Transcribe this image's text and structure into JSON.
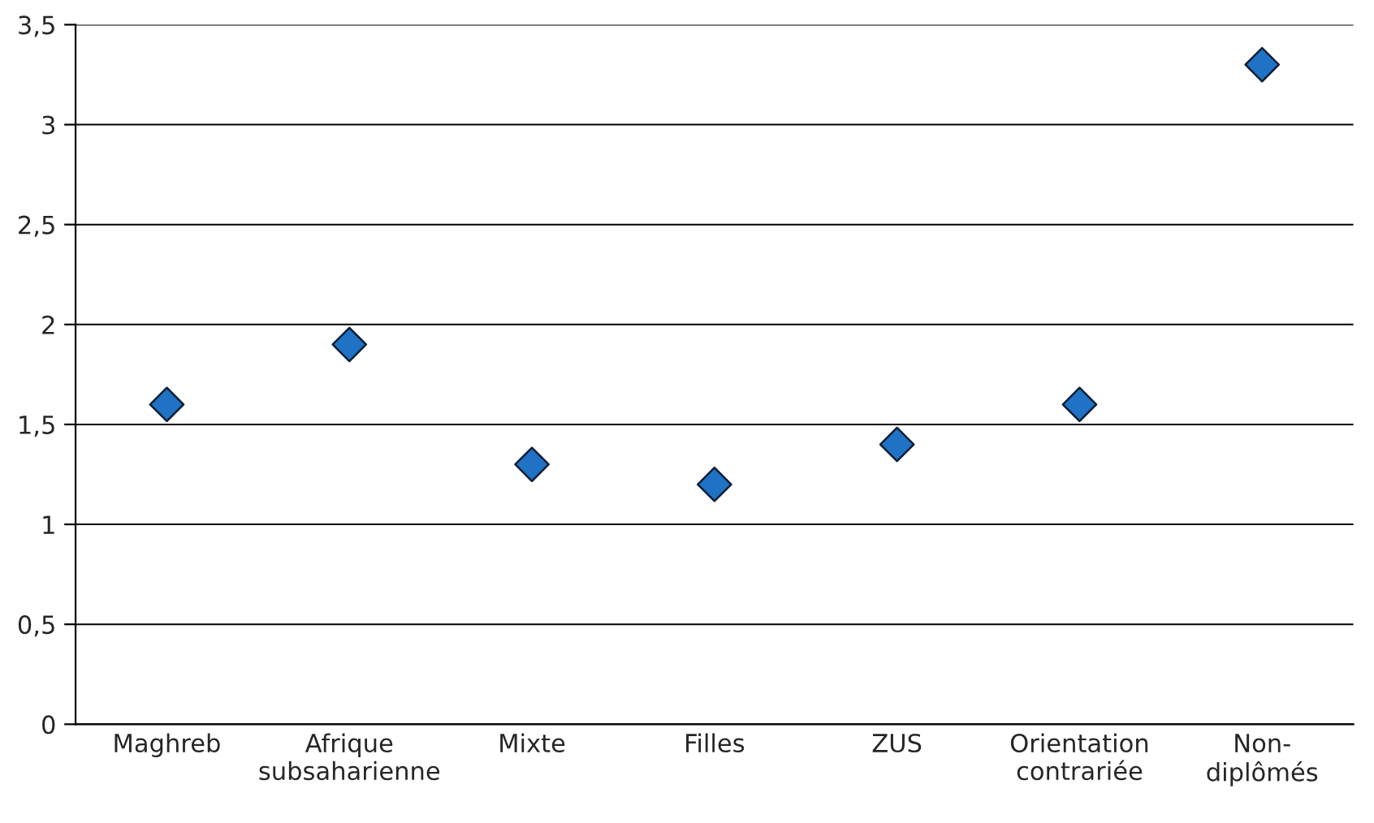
{
  "chart_data": {
    "type": "scatter",
    "categories": [
      "Maghreb",
      "Afrique\nsubsaharienne",
      "Mixte",
      "Filles",
      "ZUS",
      "Orientation\ncontrariée",
      "Non-\ndiplômés"
    ],
    "values": [
      1.6,
      1.9,
      1.3,
      1.2,
      1.4,
      1.6,
      3.3
    ],
    "color": "#1f72c4",
    "marker": "diamond",
    "ylim": [
      0,
      3.5
    ],
    "yticks": [
      0,
      {
        "value": 0.5,
        "label": "0,5"
      },
      1,
      {
        "value": 1.5,
        "label": "1,5"
      },
      2,
      {
        "value": 2.5,
        "label": "2,5"
      },
      3,
      {
        "value": 3.5,
        "label": "3,5"
      }
    ],
    "grid": "y",
    "legend": false
  }
}
